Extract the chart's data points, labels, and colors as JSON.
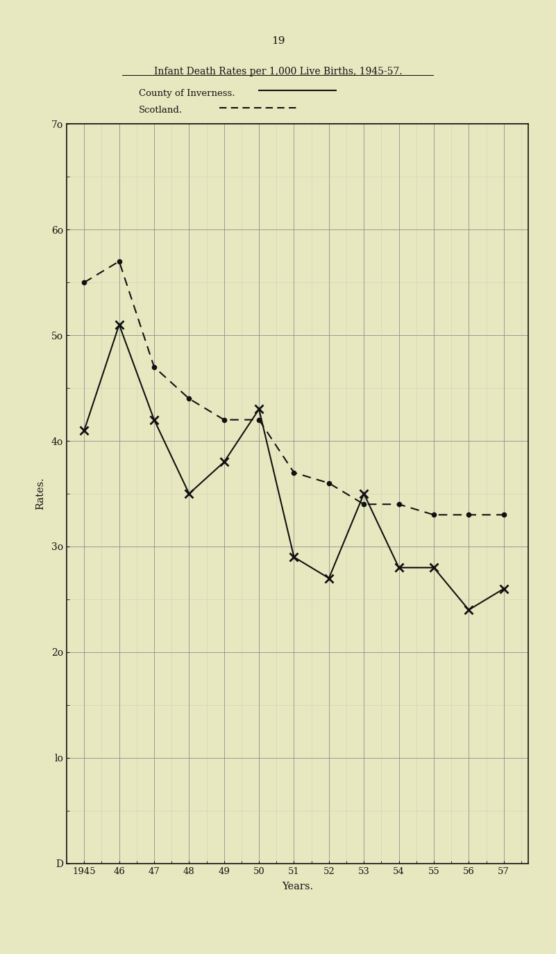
{
  "years": [
    1945,
    1946,
    1947,
    1948,
    1949,
    1950,
    1951,
    1952,
    1953,
    1954,
    1955,
    1956,
    1957
  ],
  "inverness": [
    41,
    51,
    42,
    35,
    38,
    43,
    29,
    27,
    35,
    28,
    28,
    24,
    26
  ],
  "scotland": [
    55,
    57,
    47,
    44,
    42,
    42,
    37,
    36,
    34,
    34,
    33,
    33,
    33
  ],
  "title": "Infant Death Rates per 1,000 Live Births, 1945-57.",
  "legend_inverness": "County of Inverness.",
  "legend_scotland": "Scotland.",
  "xlabel": "Years.",
  "ylabel": "Rates.",
  "ylim": [
    0,
    70
  ],
  "yticks": [
    0,
    10,
    20,
    30,
    40,
    50,
    60,
    70
  ],
  "ytick_labels": [
    "D",
    "lo",
    "2o",
    "3o",
    "4o",
    "5o",
    "6o",
    "7o"
  ],
  "xtick_labels": [
    "1945",
    "46",
    "47",
    "48",
    "49",
    "50",
    "51",
    "52",
    "53",
    "54",
    "55",
    "56",
    "57"
  ],
  "page_number": "19",
  "bg_color": "#e8e8c0",
  "line_color": "#111111",
  "grid_major_color": "#888888",
  "grid_minor_color": "#bbbbbb"
}
